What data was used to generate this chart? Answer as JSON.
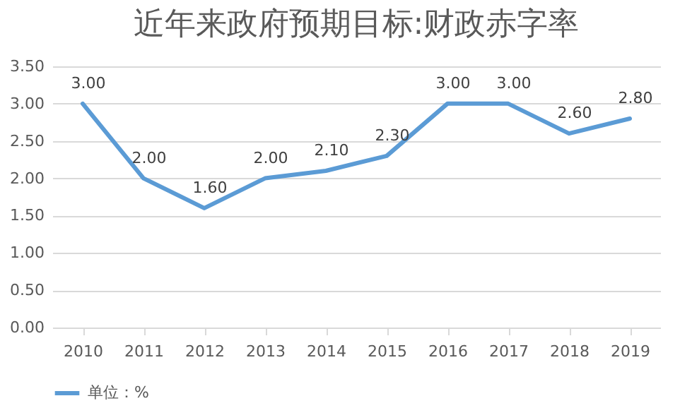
{
  "chart_data": {
    "type": "line",
    "title": "近年来政府预期目标:财政赤字率",
    "categories": [
      "2010",
      "2011",
      "2012",
      "2013",
      "2014",
      "2015",
      "2016",
      "2017",
      "2018",
      "2019"
    ],
    "series": [
      {
        "name": "单位：%",
        "color": "#5b9bd5",
        "values": [
          3.0,
          2.0,
          1.6,
          2.0,
          2.1,
          2.3,
          3.0,
          3.0,
          2.6,
          2.8
        ],
        "value_labels": [
          "3.00",
          "2.00",
          "1.60",
          "2.00",
          "2.10",
          "2.30",
          "3.00",
          "3.00",
          "2.60",
          "2.80"
        ]
      }
    ],
    "ylim": [
      0,
      3.5
    ],
    "yticks": [
      {
        "value": 0,
        "label": "0.00"
      },
      {
        "value": 0.5,
        "label": "0.50"
      },
      {
        "value": 1,
        "label": "1.00"
      },
      {
        "value": 1.5,
        "label": "1.50"
      },
      {
        "value": 2,
        "label": "2.00"
      },
      {
        "value": 2.5,
        "label": "2.50"
      },
      {
        "value": 3,
        "label": "3.00"
      },
      {
        "value": 3.5,
        "label": "3.50"
      }
    ],
    "grid": "y",
    "legend": "bottom",
    "marker": "none",
    "line_style": "solid"
  }
}
